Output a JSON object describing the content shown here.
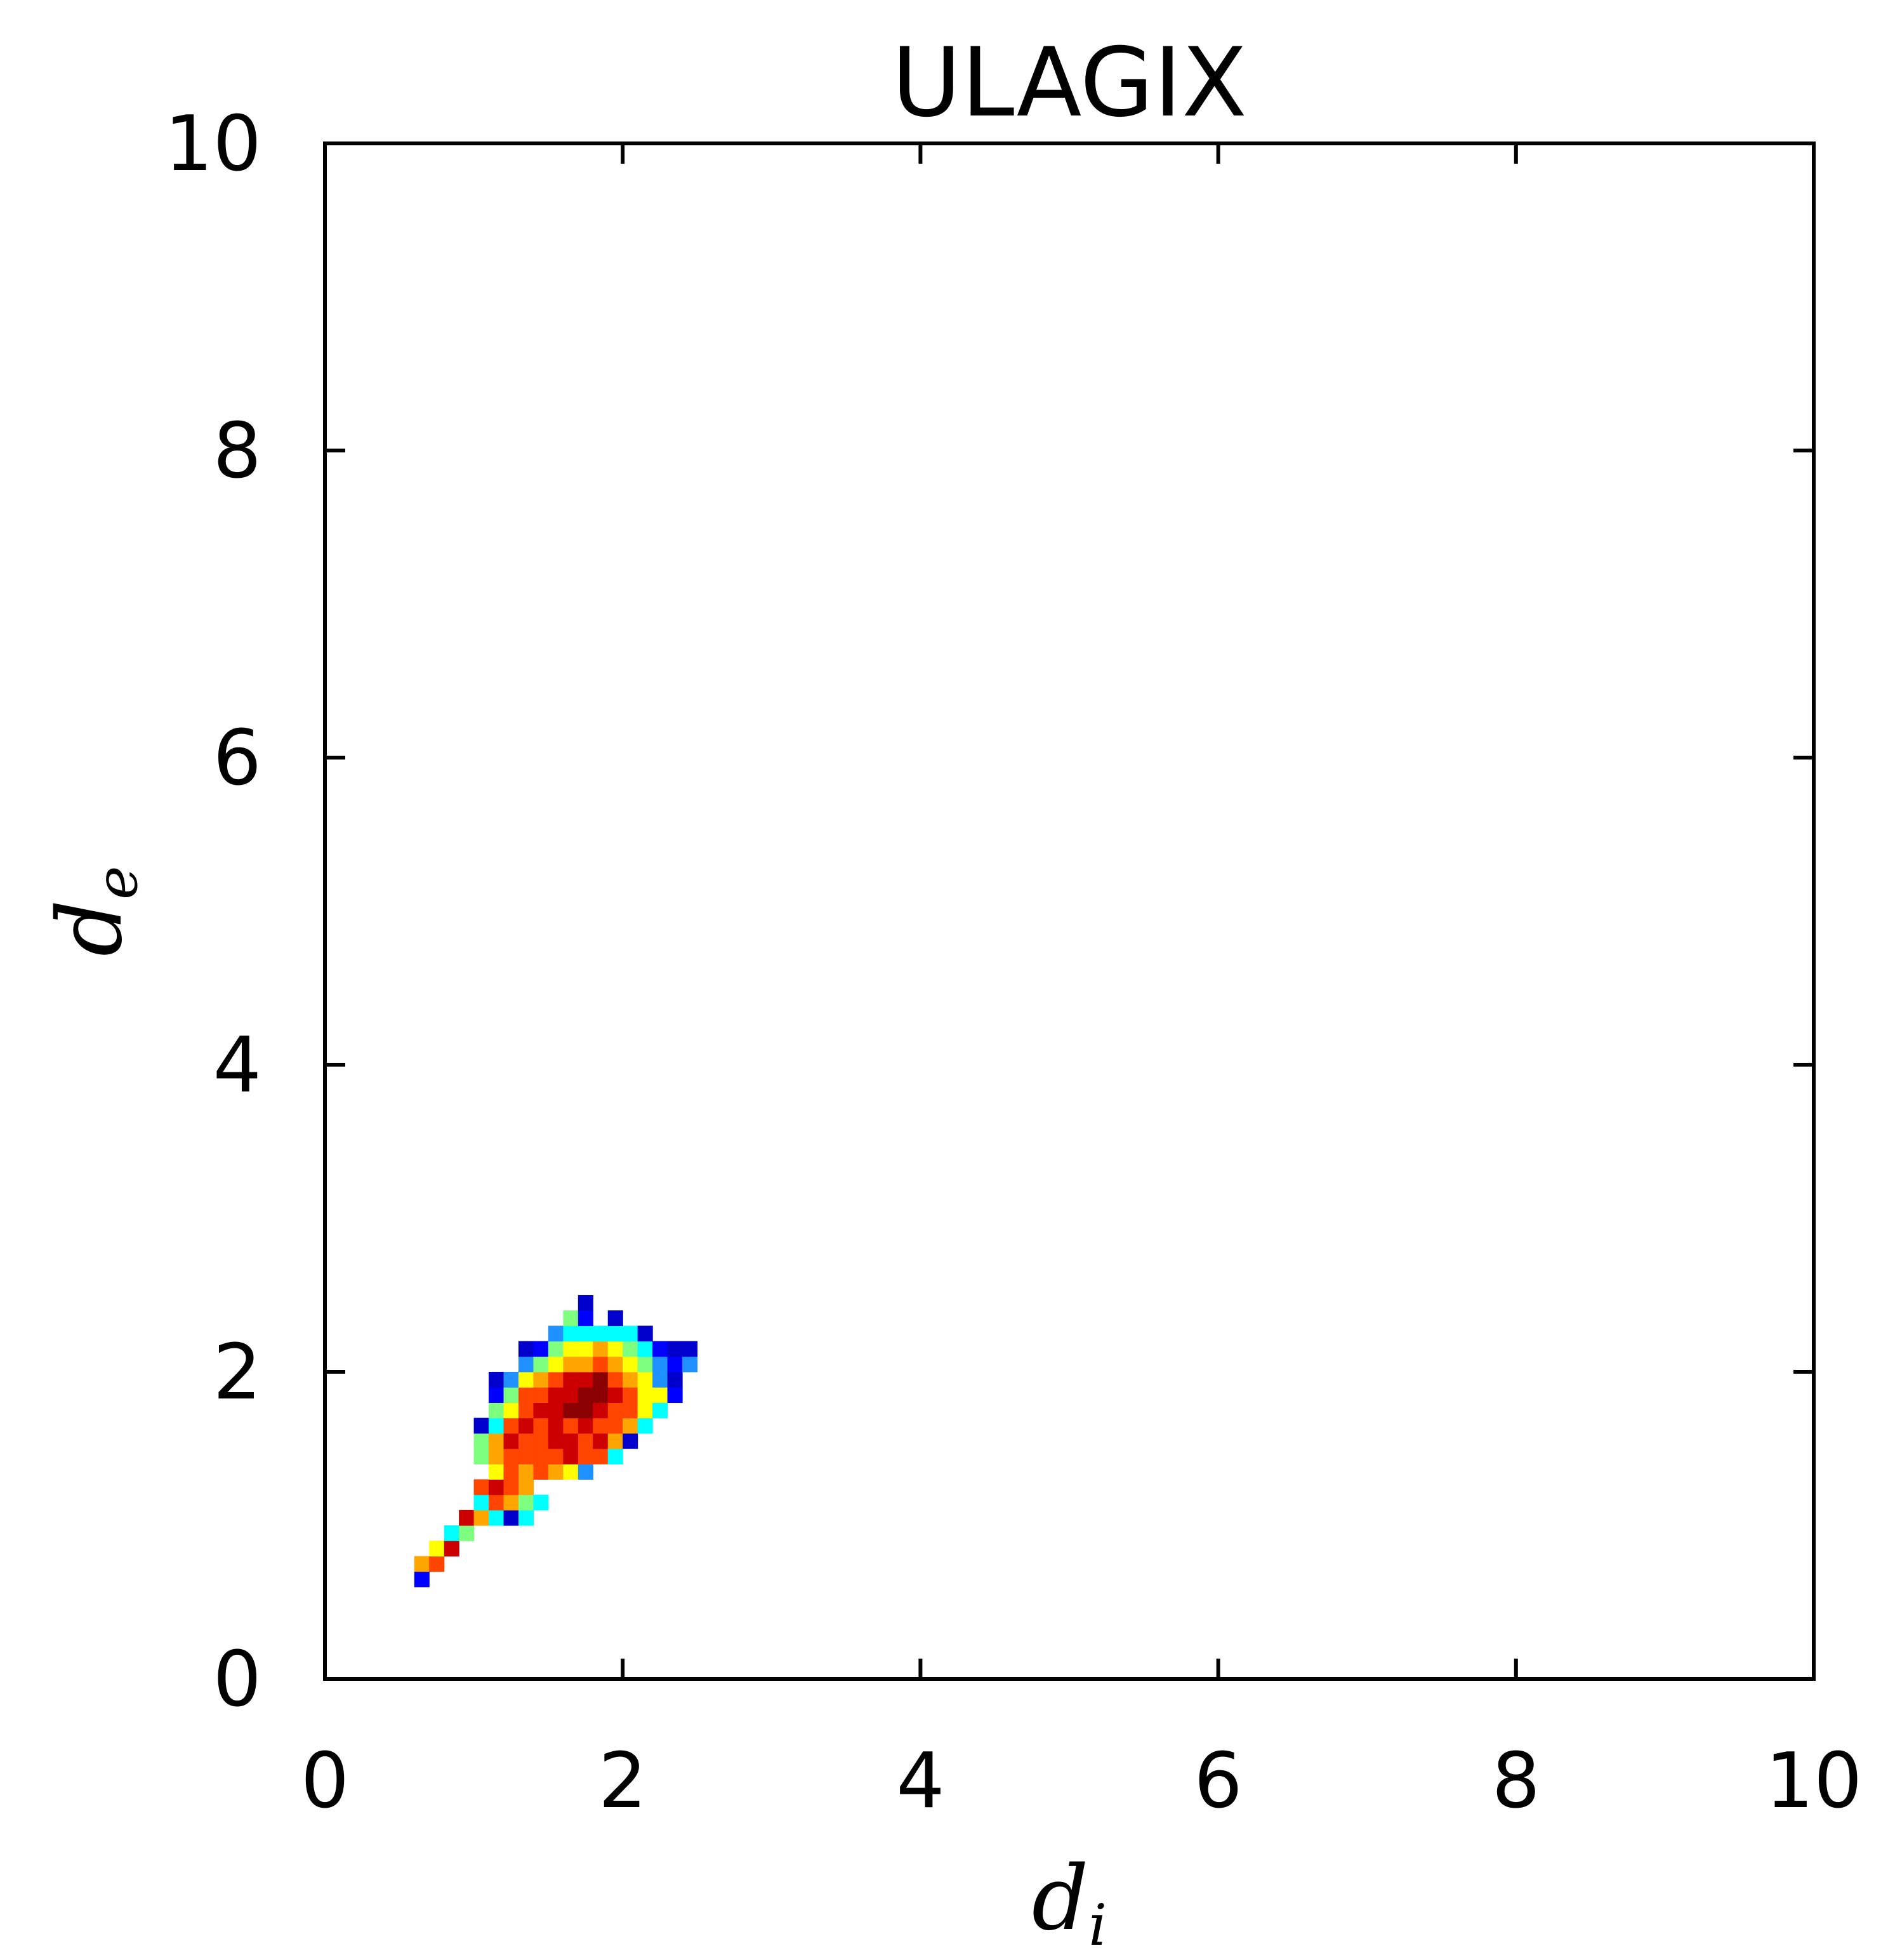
{
  "chart_data": {
    "type": "heatmap",
    "title": "ULAGIX",
    "xlabel": "d",
    "xlabel_sub": "i",
    "ylabel": "d",
    "ylabel_sub": "e",
    "xlim": [
      0,
      10
    ],
    "ylim": [
      0,
      10
    ],
    "xticks": [
      "0",
      "2",
      "4",
      "6",
      "8",
      "10"
    ],
    "yticks": [
      "0",
      "2",
      "4",
      "6",
      "8",
      "10"
    ],
    "grid": false,
    "colormap": "jet",
    "bin_size": 0.1,
    "colors": [
      "#0000cd",
      "#0000ff",
      "#1e90ff",
      "#00ffff",
      "#7fff7f",
      "#ffff00",
      "#ffa500",
      "#ff4500",
      "#cc0000",
      "#8b0000"
    ],
    "cells": [
      [
        0.6,
        0.6,
        1
      ],
      [
        0.6,
        0.7,
        6
      ],
      [
        0.7,
        0.7,
        7
      ],
      [
        0.7,
        0.8,
        5
      ],
      [
        0.8,
        0.8,
        8
      ],
      [
        0.8,
        0.9,
        3
      ],
      [
        0.9,
        0.9,
        4
      ],
      [
        0.9,
        1.0,
        8
      ],
      [
        1.0,
        1.0,
        6
      ],
      [
        1.1,
        1.0,
        3
      ],
      [
        1.2,
        1.0,
        0
      ],
      [
        1.3,
        1.0,
        3
      ],
      [
        1.0,
        1.1,
        3
      ],
      [
        1.1,
        1.1,
        7
      ],
      [
        1.2,
        1.1,
        6
      ],
      [
        1.3,
        1.1,
        4
      ],
      [
        1.4,
        1.1,
        3
      ],
      [
        1.0,
        1.2,
        7
      ],
      [
        1.1,
        1.2,
        8
      ],
      [
        1.2,
        1.2,
        7
      ],
      [
        1.3,
        1.2,
        6
      ],
      [
        1.1,
        1.3,
        5
      ],
      [
        1.2,
        1.3,
        7
      ],
      [
        1.3,
        1.3,
        6
      ],
      [
        1.4,
        1.3,
        7
      ],
      [
        1.5,
        1.3,
        6
      ],
      [
        1.6,
        1.3,
        5
      ],
      [
        1.7,
        1.3,
        2
      ],
      [
        1.0,
        1.4,
        4
      ],
      [
        1.1,
        1.4,
        6
      ],
      [
        1.2,
        1.4,
        7
      ],
      [
        1.3,
        1.4,
        7
      ],
      [
        1.4,
        1.4,
        7
      ],
      [
        1.5,
        1.4,
        7
      ],
      [
        1.6,
        1.4,
        8
      ],
      [
        1.7,
        1.4,
        7
      ],
      [
        1.8,
        1.4,
        7
      ],
      [
        1.9,
        1.4,
        3
      ],
      [
        1.0,
        1.5,
        4
      ],
      [
        1.1,
        1.5,
        6
      ],
      [
        1.2,
        1.5,
        8
      ],
      [
        1.3,
        1.5,
        7
      ],
      [
        1.4,
        1.5,
        7
      ],
      [
        1.5,
        1.5,
        8
      ],
      [
        1.6,
        1.5,
        8
      ],
      [
        1.7,
        1.5,
        7
      ],
      [
        1.8,
        1.5,
        8
      ],
      [
        1.9,
        1.5,
        6
      ],
      [
        2.0,
        1.5,
        0
      ],
      [
        1.0,
        1.6,
        0
      ],
      [
        1.1,
        1.6,
        3
      ],
      [
        1.2,
        1.6,
        7
      ],
      [
        1.3,
        1.6,
        8
      ],
      [
        1.4,
        1.6,
        7
      ],
      [
        1.5,
        1.6,
        8
      ],
      [
        1.6,
        1.6,
        7
      ],
      [
        1.7,
        1.6,
        8
      ],
      [
        1.8,
        1.6,
        7
      ],
      [
        1.9,
        1.6,
        7
      ],
      [
        2.0,
        1.6,
        6
      ],
      [
        2.1,
        1.6,
        3
      ],
      [
        1.1,
        1.7,
        4
      ],
      [
        1.2,
        1.7,
        5
      ],
      [
        1.3,
        1.7,
        7
      ],
      [
        1.4,
        1.7,
        8
      ],
      [
        1.5,
        1.7,
        8
      ],
      [
        1.6,
        1.7,
        9
      ],
      [
        1.7,
        1.7,
        9
      ],
      [
        1.8,
        1.7,
        8
      ],
      [
        1.9,
        1.7,
        7
      ],
      [
        2.0,
        1.7,
        7
      ],
      [
        2.1,
        1.7,
        5
      ],
      [
        2.2,
        1.7,
        3
      ],
      [
        1.1,
        1.8,
        1
      ],
      [
        1.2,
        1.8,
        4
      ],
      [
        1.3,
        1.8,
        7
      ],
      [
        1.4,
        1.8,
        7
      ],
      [
        1.5,
        1.8,
        8
      ],
      [
        1.6,
        1.8,
        8
      ],
      [
        1.7,
        1.8,
        9
      ],
      [
        1.8,
        1.8,
        9
      ],
      [
        1.9,
        1.8,
        8
      ],
      [
        2.0,
        1.8,
        7
      ],
      [
        2.1,
        1.8,
        5
      ],
      [
        2.2,
        1.8,
        5
      ],
      [
        2.3,
        1.8,
        1
      ],
      [
        1.1,
        1.9,
        0
      ],
      [
        1.2,
        1.9,
        2
      ],
      [
        1.3,
        1.9,
        5
      ],
      [
        1.4,
        1.9,
        6
      ],
      [
        1.5,
        1.9,
        7
      ],
      [
        1.6,
        1.9,
        8
      ],
      [
        1.7,
        1.9,
        8
      ],
      [
        1.8,
        1.9,
        9
      ],
      [
        1.9,
        1.9,
        7
      ],
      [
        2.0,
        1.9,
        6
      ],
      [
        2.1,
        1.9,
        5
      ],
      [
        2.2,
        1.9,
        2
      ],
      [
        2.3,
        1.9,
        0
      ],
      [
        1.3,
        2.0,
        2
      ],
      [
        1.4,
        2.0,
        4
      ],
      [
        1.5,
        2.0,
        5
      ],
      [
        1.6,
        2.0,
        6
      ],
      [
        1.7,
        2.0,
        6
      ],
      [
        1.8,
        2.0,
        7
      ],
      [
        1.9,
        2.0,
        6
      ],
      [
        2.0,
        2.0,
        5
      ],
      [
        2.1,
        2.0,
        4
      ],
      [
        2.2,
        2.0,
        2
      ],
      [
        2.3,
        2.0,
        1
      ],
      [
        2.4,
        2.0,
        2
      ],
      [
        1.3,
        2.1,
        0
      ],
      [
        1.4,
        2.1,
        1
      ],
      [
        1.5,
        2.1,
        4
      ],
      [
        1.6,
        2.1,
        5
      ],
      [
        1.7,
        2.1,
        5
      ],
      [
        1.8,
        2.1,
        6
      ],
      [
        1.9,
        2.1,
        5
      ],
      [
        2.0,
        2.1,
        4
      ],
      [
        2.1,
        2.1,
        3
      ],
      [
        2.2,
        2.1,
        1
      ],
      [
        2.3,
        2.1,
        0
      ],
      [
        2.4,
        2.1,
        0
      ],
      [
        1.5,
        2.2,
        2
      ],
      [
        1.6,
        2.2,
        3
      ],
      [
        1.7,
        2.2,
        3
      ],
      [
        1.8,
        2.2,
        3
      ],
      [
        1.9,
        2.2,
        3
      ],
      [
        2.0,
        2.2,
        3
      ],
      [
        2.1,
        2.2,
        0
      ],
      [
        1.6,
        2.3,
        4
      ],
      [
        1.7,
        2.3,
        1
      ],
      [
        1.9,
        2.3,
        0
      ],
      [
        1.7,
        2.4,
        0
      ]
    ]
  }
}
